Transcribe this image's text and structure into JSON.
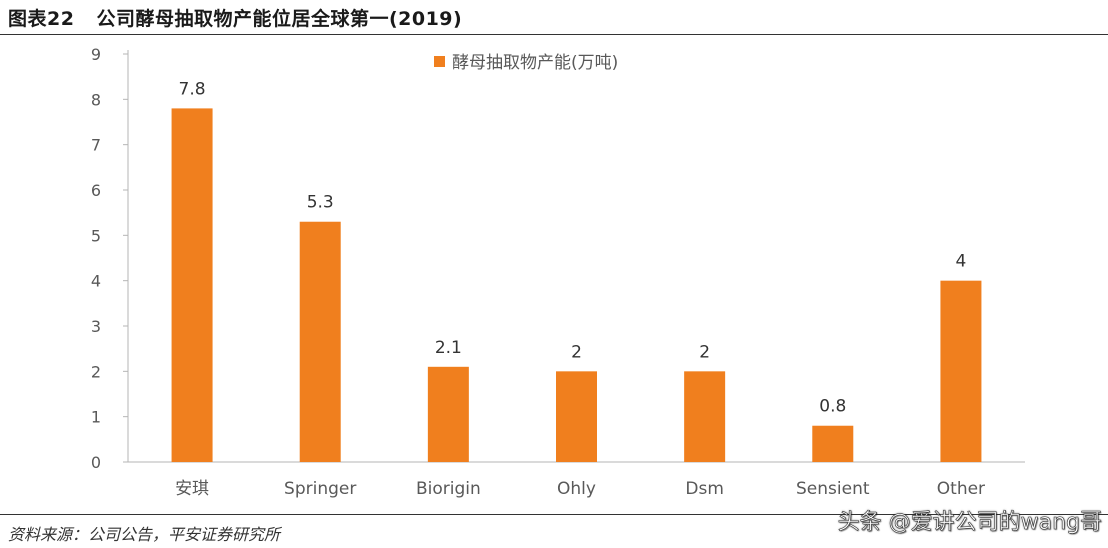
{
  "figure": {
    "number": "图表22",
    "title": "公司酵母抽取物产能位居全球第一(2019)"
  },
  "chart_data": {
    "type": "bar",
    "categories": [
      "安琪",
      "Springer",
      "Biorigin",
      "Ohly",
      "Dsm",
      "Sensient",
      "Other"
    ],
    "series": [
      {
        "name": "酵母抽取物产能(万吨)",
        "values": [
          7.8,
          5.3,
          2.1,
          2,
          2,
          0.8,
          4
        ],
        "labels": [
          "7.8",
          "5.3",
          "2.1",
          "2",
          "2",
          "0.8",
          "4"
        ]
      }
    ],
    "ylim": [
      0,
      9
    ],
    "yticks": [
      "0",
      "1",
      "2",
      "3",
      "4",
      "5",
      "6",
      "7",
      "8",
      "9"
    ],
    "grid": false,
    "legend_position": "top-center",
    "bar_color": "#F07F1E",
    "axis_color": "#B5B5B5",
    "tick_label_color": "#595959"
  },
  "footer": {
    "source": "资料来源：公司公告，平安证券研究所",
    "watermark": "头条 @爱讲公司的wang哥"
  }
}
